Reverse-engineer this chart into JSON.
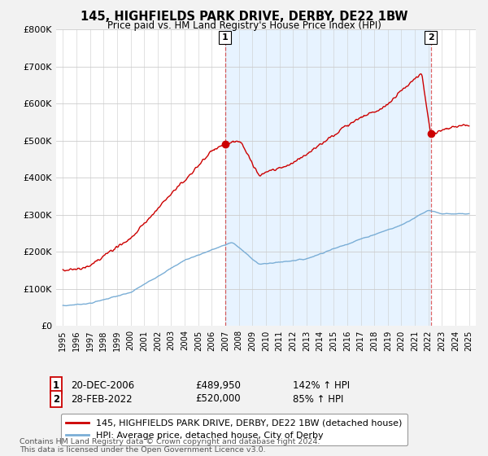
{
  "title": "145, HIGHFIELDS PARK DRIVE, DERBY, DE22 1BW",
  "subtitle": "Price paid vs. HM Land Registry's House Price Index (HPI)",
  "ylim": [
    0,
    800000
  ],
  "yticks": [
    0,
    100000,
    200000,
    300000,
    400000,
    500000,
    600000,
    700000,
    800000
  ],
  "red_line_color": "#cc0000",
  "blue_line_color": "#7aaed6",
  "shade_color": "#ddeeff",
  "sale1_year": 2006.97,
  "sale1_price": 489950,
  "sale1_label": "1",
  "sale1_date": "20-DEC-2006",
  "sale1_pct": "142% ↑ HPI",
  "sale2_year": 2022.17,
  "sale2_price": 520000,
  "sale2_label": "2",
  "sale2_date": "28-FEB-2022",
  "sale2_pct": "85% ↑ HPI",
  "legend_red": "145, HIGHFIELDS PARK DRIVE, DERBY, DE22 1BW (detached house)",
  "legend_blue": "HPI: Average price, detached house, City of Derby",
  "footnote": "Contains HM Land Registry data © Crown copyright and database right 2024.\nThis data is licensed under the Open Government Licence v3.0.",
  "background_color": "#f2f2f2",
  "plot_bg_color": "#ffffff"
}
